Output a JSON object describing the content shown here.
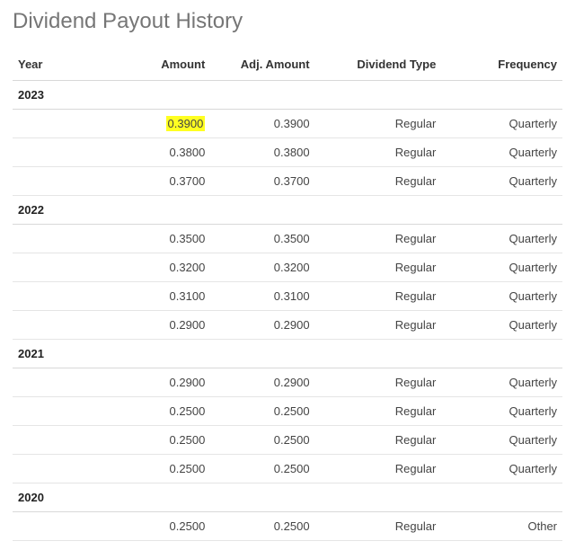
{
  "title": "Dividend Payout History",
  "columns": {
    "year": "Year",
    "amount": "Amount",
    "adj_amount": "Adj. Amount",
    "dividend_type": "Dividend Type",
    "frequency": "Frequency"
  },
  "highlight_color": "#ffff21",
  "border_color": "#e5e5e5",
  "header_border_color": "#d8d8d8",
  "title_color": "#767676",
  "groups": [
    {
      "year": "2023",
      "rows": [
        {
          "amount": "0.3900",
          "adj_amount": "0.3900",
          "dividend_type": "Regular",
          "frequency": "Quarterly",
          "highlight_amount": true
        },
        {
          "amount": "0.3800",
          "adj_amount": "0.3800",
          "dividend_type": "Regular",
          "frequency": "Quarterly"
        },
        {
          "amount": "0.3700",
          "adj_amount": "0.3700",
          "dividend_type": "Regular",
          "frequency": "Quarterly"
        }
      ]
    },
    {
      "year": "2022",
      "rows": [
        {
          "amount": "0.3500",
          "adj_amount": "0.3500",
          "dividend_type": "Regular",
          "frequency": "Quarterly"
        },
        {
          "amount": "0.3200",
          "adj_amount": "0.3200",
          "dividend_type": "Regular",
          "frequency": "Quarterly"
        },
        {
          "amount": "0.3100",
          "adj_amount": "0.3100",
          "dividend_type": "Regular",
          "frequency": "Quarterly"
        },
        {
          "amount": "0.2900",
          "adj_amount": "0.2900",
          "dividend_type": "Regular",
          "frequency": "Quarterly"
        }
      ]
    },
    {
      "year": "2021",
      "rows": [
        {
          "amount": "0.2900",
          "adj_amount": "0.2900",
          "dividend_type": "Regular",
          "frequency": "Quarterly"
        },
        {
          "amount": "0.2500",
          "adj_amount": "0.2500",
          "dividend_type": "Regular",
          "frequency": "Quarterly"
        },
        {
          "amount": "0.2500",
          "adj_amount": "0.2500",
          "dividend_type": "Regular",
          "frequency": "Quarterly"
        },
        {
          "amount": "0.2500",
          "adj_amount": "0.2500",
          "dividend_type": "Regular",
          "frequency": "Quarterly"
        }
      ]
    },
    {
      "year": "2020",
      "rows": [
        {
          "amount": "0.2500",
          "adj_amount": "0.2500",
          "dividend_type": "Regular",
          "frequency": "Other"
        }
      ]
    }
  ]
}
